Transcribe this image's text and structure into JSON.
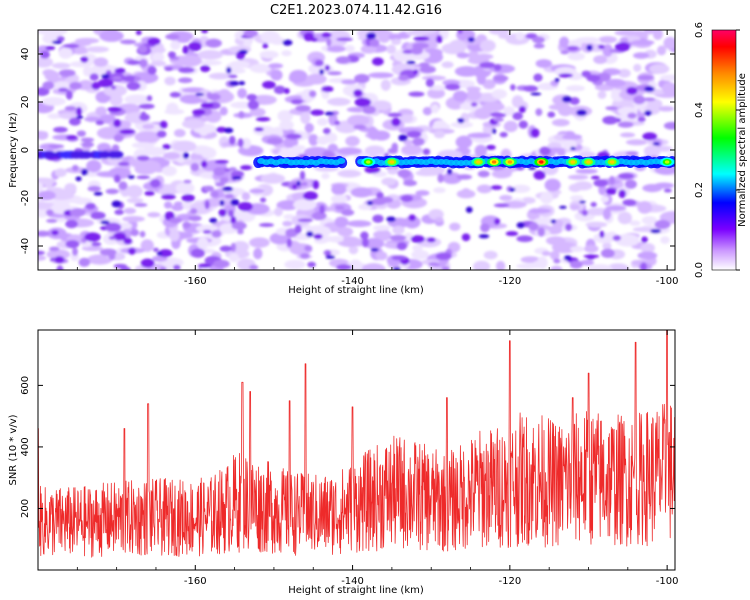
{
  "title": "C2E1.2023.074.11.42.G16",
  "chart_data": [
    {
      "type": "heatmap",
      "xlabel": "Height of straight line (km)",
      "ylabel": "Frequency (Hz)",
      "xlim": [
        -180,
        -99
      ],
      "ylim": [
        -50,
        50
      ],
      "x_ticks": [
        -160,
        -140,
        -120,
        -100
      ],
      "y_ticks": [
        -40,
        -20,
        0,
        20,
        40
      ],
      "colorbar": {
        "label": "Normalized spectral amplitude",
        "range": [
          0,
          0.6
        ],
        "ticks": [
          "0.0",
          "0.2",
          "0.4",
          "0.6"
        ],
        "colors": [
          "#ffffff",
          "#cc99ff",
          "#7a00ff",
          "#0000ff",
          "#00ffff",
          "#00ff00",
          "#ffff00",
          "#ff8800",
          "#ff0000",
          "#ff0066"
        ]
      },
      "signal_band": {
        "frequency_hz": -5,
        "start_km": -152,
        "end_km": -99,
        "peaks": [
          {
            "x": -138,
            "amp": 0.4
          },
          {
            "x": -135,
            "amp": 0.45
          },
          {
            "x": -124,
            "amp": 0.45
          },
          {
            "x": -122,
            "amp": 0.5
          },
          {
            "x": -120,
            "amp": 0.48
          },
          {
            "x": -116,
            "amp": 0.55
          },
          {
            "x": -112,
            "amp": 0.45
          },
          {
            "x": -110,
            "amp": 0.45
          },
          {
            "x": -107,
            "amp": 0.45
          },
          {
            "x": -100,
            "amp": 0.4
          }
        ]
      }
    },
    {
      "type": "line",
      "xlabel": "Height of straight line (km)",
      "ylabel": "SNR (10 * v/v)",
      "xlim": [
        -180,
        -99
      ],
      "ylim": [
        0,
        780
      ],
      "x_ticks": [
        -160,
        -140,
        -120,
        -100
      ],
      "y_ticks": [
        200,
        400,
        600
      ],
      "color": "#ee2a2a",
      "envelope": {
        "x": [
          -180,
          -178,
          -175,
          -170,
          -166,
          -163,
          -160,
          -158,
          -156,
          -155,
          -154,
          -152,
          -150,
          -148,
          -146,
          -144,
          -142,
          -140,
          -138,
          -136,
          -134,
          -132,
          -130,
          -128,
          -126,
          -124,
          -122,
          -120,
          -119,
          -118,
          -116,
          -114,
          -112,
          -110,
          -108,
          -106,
          -104,
          -102,
          -100,
          -99
        ],
        "y": [
          160,
          160,
          160,
          170,
          175,
          175,
          175,
          180,
          205,
          225,
          230,
          215,
          205,
          190,
          185,
          185,
          190,
          210,
          230,
          250,
          260,
          250,
          235,
          225,
          245,
          270,
          275,
          290,
          300,
          305,
          300,
          285,
          300,
          310,
          305,
          300,
          300,
          315,
          325,
          335
        ]
      },
      "spikes": [
        {
          "x": -180,
          "y": 460
        },
        {
          "x": -169,
          "y": 460
        },
        {
          "x": -166,
          "y": 540
        },
        {
          "x": -154,
          "y": 610
        },
        {
          "x": -153,
          "y": 580
        },
        {
          "x": -148,
          "y": 550
        },
        {
          "x": -146,
          "y": 670
        },
        {
          "x": -140,
          "y": 530
        },
        {
          "x": -128,
          "y": 560
        },
        {
          "x": -120,
          "y": 745
        },
        {
          "x": -112,
          "y": 560
        },
        {
          "x": -110,
          "y": 640
        },
        {
          "x": -104,
          "y": 740
        },
        {
          "x": -100,
          "y": 780
        }
      ]
    }
  ]
}
